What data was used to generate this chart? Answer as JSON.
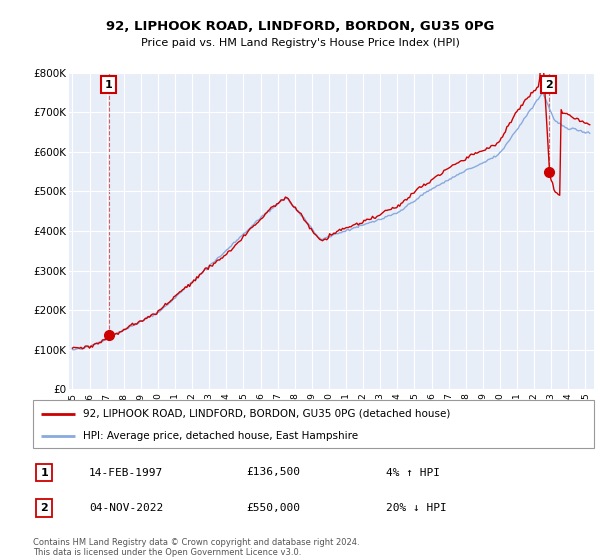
{
  "title": "92, LIPHOOK ROAD, LINDFORD, BORDON, GU35 0PG",
  "subtitle": "Price paid vs. HM Land Registry's House Price Index (HPI)",
  "legend_line1": "92, LIPHOOK ROAD, LINDFORD, BORDON, GU35 0PG (detached house)",
  "legend_line2": "HPI: Average price, detached house, East Hampshire",
  "annotation1_date": "14-FEB-1997",
  "annotation1_price": "£136,500",
  "annotation1_hpi": "4% ↑ HPI",
  "annotation2_date": "04-NOV-2022",
  "annotation2_price": "£550,000",
  "annotation2_hpi": "20% ↓ HPI",
  "footer": "Contains HM Land Registry data © Crown copyright and database right 2024.\nThis data is licensed under the Open Government Licence v3.0.",
  "price_line_color": "#cc0000",
  "hpi_line_color": "#88aadd",
  "bg_chart": "#e8eef8",
  "bg_fig": "#ffffff",
  "grid_color": "#ffffff",
  "ylim": [
    0,
    800000
  ],
  "yticks": [
    0,
    100000,
    200000,
    300000,
    400000,
    500000,
    600000,
    700000,
    800000
  ],
  "ytick_labels": [
    "£0",
    "£100K",
    "£200K",
    "£300K",
    "£400K",
    "£500K",
    "£600K",
    "£700K",
    "£800K"
  ],
  "sale1_x": 1997.12,
  "sale1_y": 136500,
  "sale2_x": 2022.84,
  "sale2_y": 550000,
  "xmin": 1994.8,
  "xmax": 2025.5
}
